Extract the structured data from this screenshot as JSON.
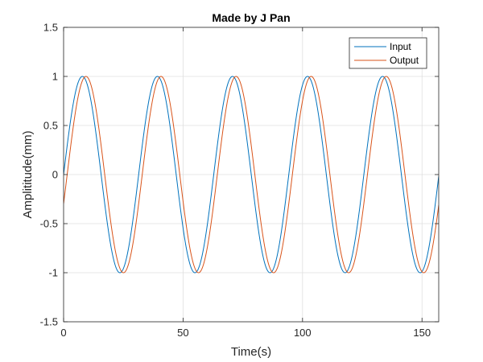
{
  "chart_data": {
    "type": "line",
    "title": "Made by J Pan",
    "xlabel": "Time(s)",
    "ylabel": "Amplititude(mm)",
    "xlim": [
      0,
      157
    ],
    "ylim": [
      -1.5,
      1.5
    ],
    "xticks": [
      "0",
      "50",
      "100",
      "150"
    ],
    "yticks": [
      "-1.5",
      "-1",
      "-0.5",
      "0",
      "0.5",
      "1",
      "1.5"
    ],
    "grid": true,
    "legend_position": "top-right",
    "series": [
      {
        "name": "Input",
        "color": "#0072BD",
        "function": "sin",
        "amplitude": 1,
        "frequency": 0.2,
        "phase": 0
      },
      {
        "name": "Output",
        "color": "#D95319",
        "function": "sin",
        "amplitude": 1,
        "frequency": 0.2,
        "phase": -0.3
      }
    ]
  }
}
